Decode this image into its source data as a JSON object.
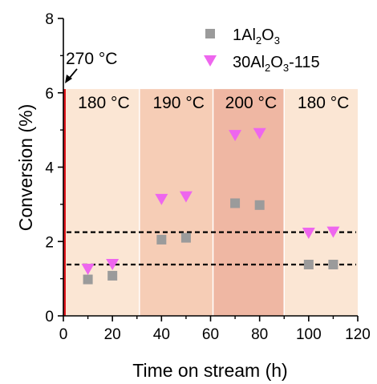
{
  "chart_data": {
    "type": "scatter",
    "xlabel": "Time on stream (h)",
    "ylabel": "Conversion (%)",
    "xlim": [
      0,
      120
    ],
    "ylim": [
      0,
      8
    ],
    "xticks": [
      0,
      20,
      40,
      60,
      80,
      100,
      120
    ],
    "yticks": [
      0,
      2,
      4,
      6,
      8
    ],
    "legend_position": "top-right",
    "regions": [
      {
        "label": "180 °C",
        "x": [
          0,
          31
        ],
        "color": "#fbe6d4"
      },
      {
        "label": "190 °C",
        "x": [
          31,
          61
        ],
        "color": "#f6cdb6"
      },
      {
        "label": "200 °C",
        "x": [
          61,
          90
        ],
        "color": "#efb7a3"
      },
      {
        "label": "180 °C",
        "x": [
          90,
          120
        ],
        "color": "#fbe6d4"
      }
    ],
    "region_ymax": 6.1,
    "start_marker": {
      "label": "270 °C",
      "x": 0,
      "color": "#e0161c"
    },
    "reference_lines": [
      1.38,
      2.25
    ],
    "series": [
      {
        "name": "1Al2O3",
        "marker": "square",
        "color": "#9b9b9b",
        "legend": {
          "base": "1Al",
          "sub": "2",
          "o": "O",
          "sub2": "3",
          "tail": ""
        },
        "points": [
          {
            "x": 10,
            "y": 0.98
          },
          {
            "x": 20,
            "y": 1.08
          },
          {
            "x": 40,
            "y": 2.05
          },
          {
            "x": 50,
            "y": 2.1
          },
          {
            "x": 70,
            "y": 3.03
          },
          {
            "x": 80,
            "y": 2.98
          },
          {
            "x": 100,
            "y": 1.38
          },
          {
            "x": 110,
            "y": 1.38
          }
        ]
      },
      {
        "name": "30Al2O3-115",
        "marker": "triangle-down",
        "color": "#ee66ee",
        "legend": {
          "base": "30Al",
          "sub": "2",
          "o": "O",
          "sub2": "3",
          "tail": "-115"
        },
        "points": [
          {
            "x": 10,
            "y": 1.25
          },
          {
            "x": 20,
            "y": 1.38
          },
          {
            "x": 40,
            "y": 3.13
          },
          {
            "x": 50,
            "y": 3.2
          },
          {
            "x": 70,
            "y": 4.85
          },
          {
            "x": 80,
            "y": 4.9
          },
          {
            "x": 100,
            "y": 2.22
          },
          {
            "x": 110,
            "y": 2.25
          }
        ]
      }
    ]
  }
}
